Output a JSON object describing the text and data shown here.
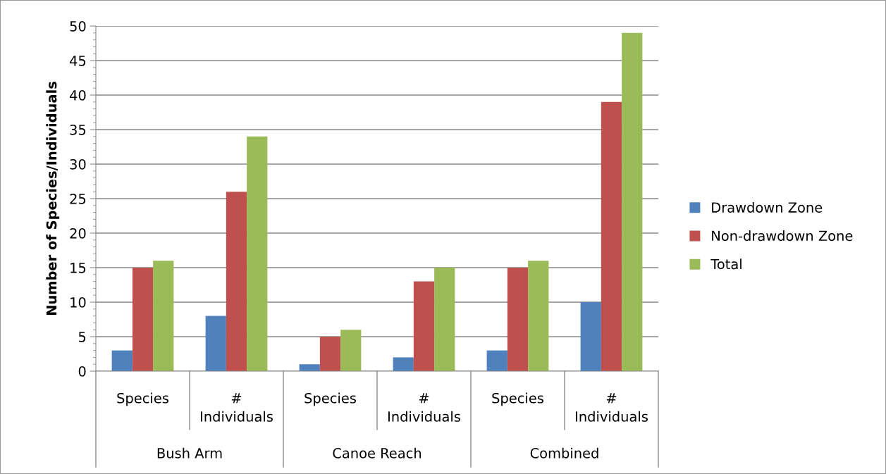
{
  "chart_data": {
    "type": "bar",
    "ylabel": "Number of Species/Individuals",
    "categories": [
      "Species",
      "# Individuals",
      "Species",
      "# Individuals",
      "Species",
      "# Individuals"
    ],
    "series": [
      {
        "name": "Drawdown Zone",
        "color": "#4f81bd",
        "values": [
          3,
          8,
          1,
          2,
          3,
          10
        ]
      },
      {
        "name": "Non-drawdown Zone",
        "color": "#c0504d",
        "values": [
          15,
          26,
          5,
          13,
          15,
          39
        ]
      },
      {
        "name": "Total",
        "color": "#9bbb59",
        "values": [
          16,
          34,
          6,
          15,
          16,
          49
        ]
      }
    ],
    "annotations": [
      "Bush Arm",
      "Canoe Reach",
      "Combined"
    ],
    "ylim": [
      0,
      50
    ],
    "yticks": [
      0,
      5,
      10,
      15,
      20,
      25,
      30,
      35,
      40,
      45,
      50
    ],
    "grid": "y",
    "legend": "right"
  }
}
